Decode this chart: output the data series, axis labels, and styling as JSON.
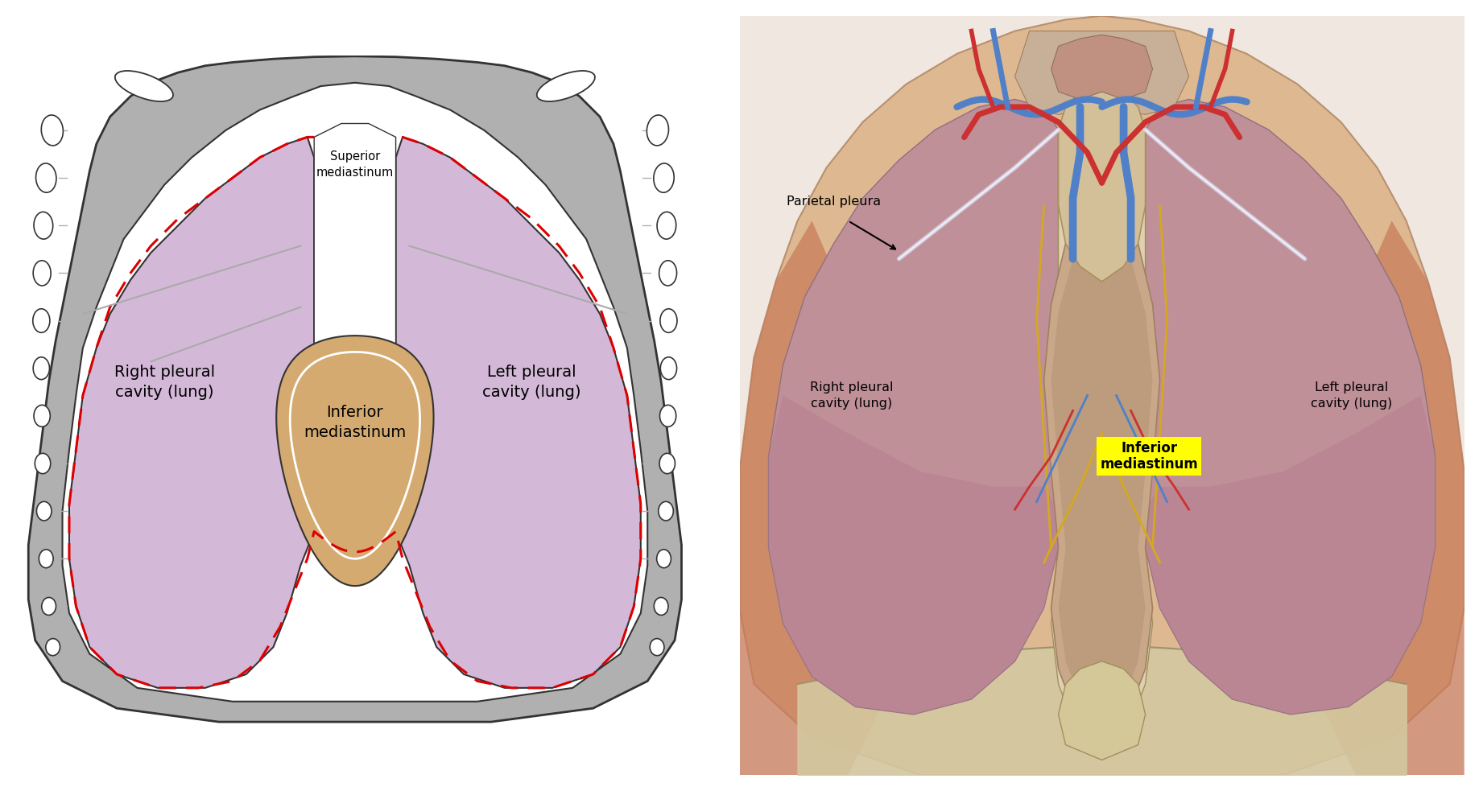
{
  "figure_width": 18.37,
  "figure_height": 9.83,
  "bg_color": "#ffffff",
  "left_panel": {
    "lung_purple": "#d4b8d8",
    "inferior_med_color": "#d4aa70",
    "rib_gray": "#b0b0b0",
    "rib_dark": "#888888",
    "white": "#ffffff",
    "red_dashed": "#dd0000",
    "outline": "#333333",
    "labels": {
      "superior": "Superior\nmediastinum",
      "left_pleural": "Left pleural\ncavity (lung)",
      "right_pleural": "Right pleural\ncavity (lung)",
      "inferior_med": "Inferior\nmediastinum"
    }
  },
  "right_panel": {
    "skin_color": "#e8c4a8",
    "muscle_color": "#c87860",
    "lung_pink": "#c09098",
    "lung_dark": "#a07880",
    "mediastinum_beige": "#c8a878",
    "thymus_color": "#c8b888",
    "vessel_blue": "#5080c8",
    "vessel_red": "#cc3030",
    "vessel_yellow": "#d4a820",
    "label_yellow_bg": "#ffff00",
    "labels": {
      "parietal_pleura": "Parietal pleura",
      "right_pleural": "Right pleural\ncavity (lung)",
      "left_pleural": "Left pleural\ncavity (lung)",
      "inferior_med": "Inferior\nmediastinum"
    }
  }
}
